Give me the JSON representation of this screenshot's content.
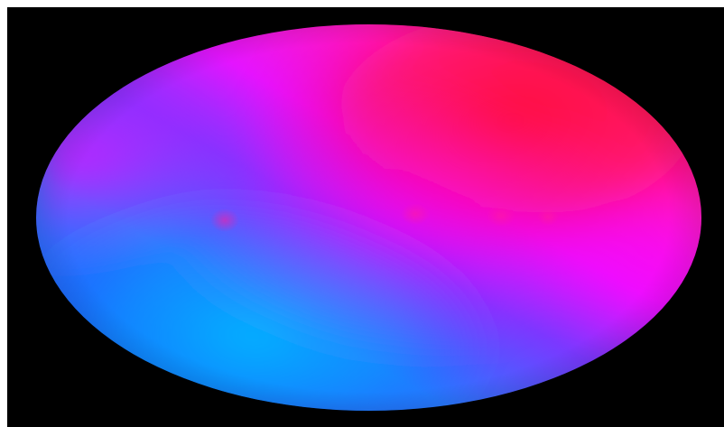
{
  "image": {
    "subject": "all-sky-map",
    "colors": {
      "background": "#000000",
      "border": "#ffffff",
      "red": "#ff1a3a",
      "magenta": "#ff00ff",
      "blue": "#1e5cff",
      "cyan": "#00b5ff"
    }
  }
}
